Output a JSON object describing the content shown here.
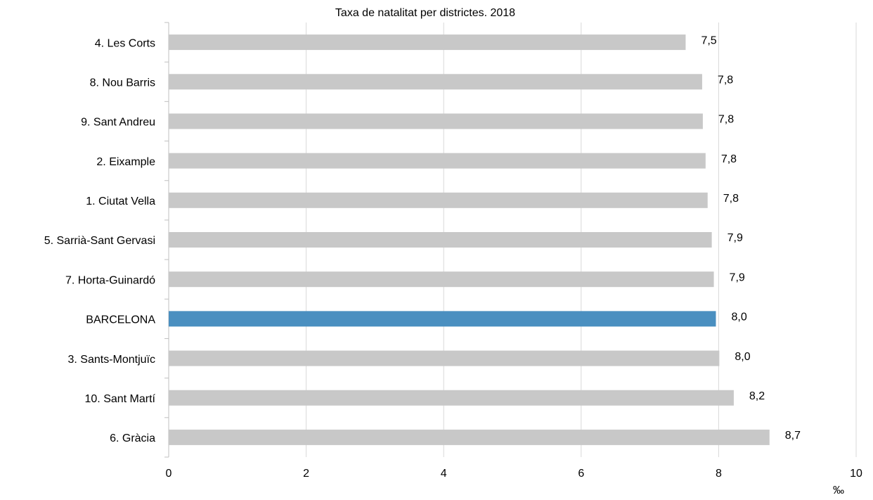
{
  "chart_data": {
    "type": "bar",
    "orientation": "horizontal",
    "title": "Taxa de natalitat per districtes. 2018",
    "x_label": "‰",
    "categories": [
      "4. Les Corts",
      "8. Nou Barris",
      "9. Sant Andreu",
      "2. Eixample",
      "1. Ciutat Vella",
      "5. Sarrià-Sant Gervasi",
      "7. Horta-Guinardó",
      "BARCELONA",
      "3. Sants-Montjuïc",
      "10. Sant Martí",
      "6. Gràcia"
    ],
    "values": [
      7.52,
      7.76,
      7.77,
      7.81,
      7.84,
      7.9,
      7.93,
      7.96,
      8.01,
      8.22,
      8.74
    ],
    "value_labels": [
      "7,5",
      "7,8",
      "7,8",
      "7,8",
      "7,8",
      "7,9",
      "7,9",
      "8,0",
      "8,0",
      "8,2",
      "8,7"
    ],
    "colors": [
      "#c8c8c8",
      "#c8c8c8",
      "#c8c8c8",
      "#c8c8c8",
      "#c8c8c8",
      "#c8c8c8",
      "#c8c8c8",
      "#4a8fc0",
      "#c8c8c8",
      "#c8c8c8",
      "#c8c8c8"
    ],
    "xlim": [
      0,
      10
    ],
    "xticks": [
      0,
      2,
      4,
      6,
      8,
      10
    ],
    "grid": true
  }
}
